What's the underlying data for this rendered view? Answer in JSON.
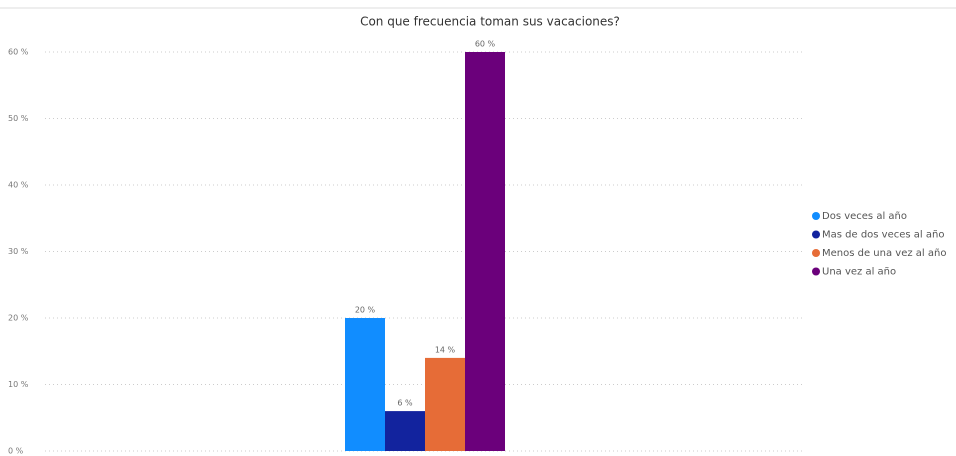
{
  "chart_data": {
    "type": "bar",
    "title": "Con que frecuencia toman sus vacaciones?",
    "categories": [
      null
    ],
    "series": [
      {
        "name": "Dos veces al año",
        "color": "#118dff",
        "values": [
          20
        ],
        "value_labels": [
          "20 %"
        ]
      },
      {
        "name": "Mas de dos veces al año",
        "color": "#12239e",
        "values": [
          6
        ],
        "value_labels": [
          "6 %"
        ]
      },
      {
        "name": "Menos de una vez al año",
        "color": "#e66c37",
        "values": [
          14
        ],
        "value_labels": [
          "14 %"
        ]
      },
      {
        "name": "Una vez al año",
        "color": "#6b007b",
        "values": [
          60
        ],
        "value_labels": [
          "60 %"
        ]
      }
    ],
    "ylim": [
      0,
      60
    ],
    "yticks": [
      {
        "value": 0,
        "label": "0 %"
      },
      {
        "value": 10,
        "label": "10 %"
      },
      {
        "value": 20,
        "label": "20 %"
      },
      {
        "value": 30,
        "label": "30 %"
      },
      {
        "value": 40,
        "label": "40 %"
      },
      {
        "value": 50,
        "label": "50 %"
      },
      {
        "value": 60,
        "label": "60 %"
      }
    ],
    "grid": true,
    "legend": "right"
  }
}
